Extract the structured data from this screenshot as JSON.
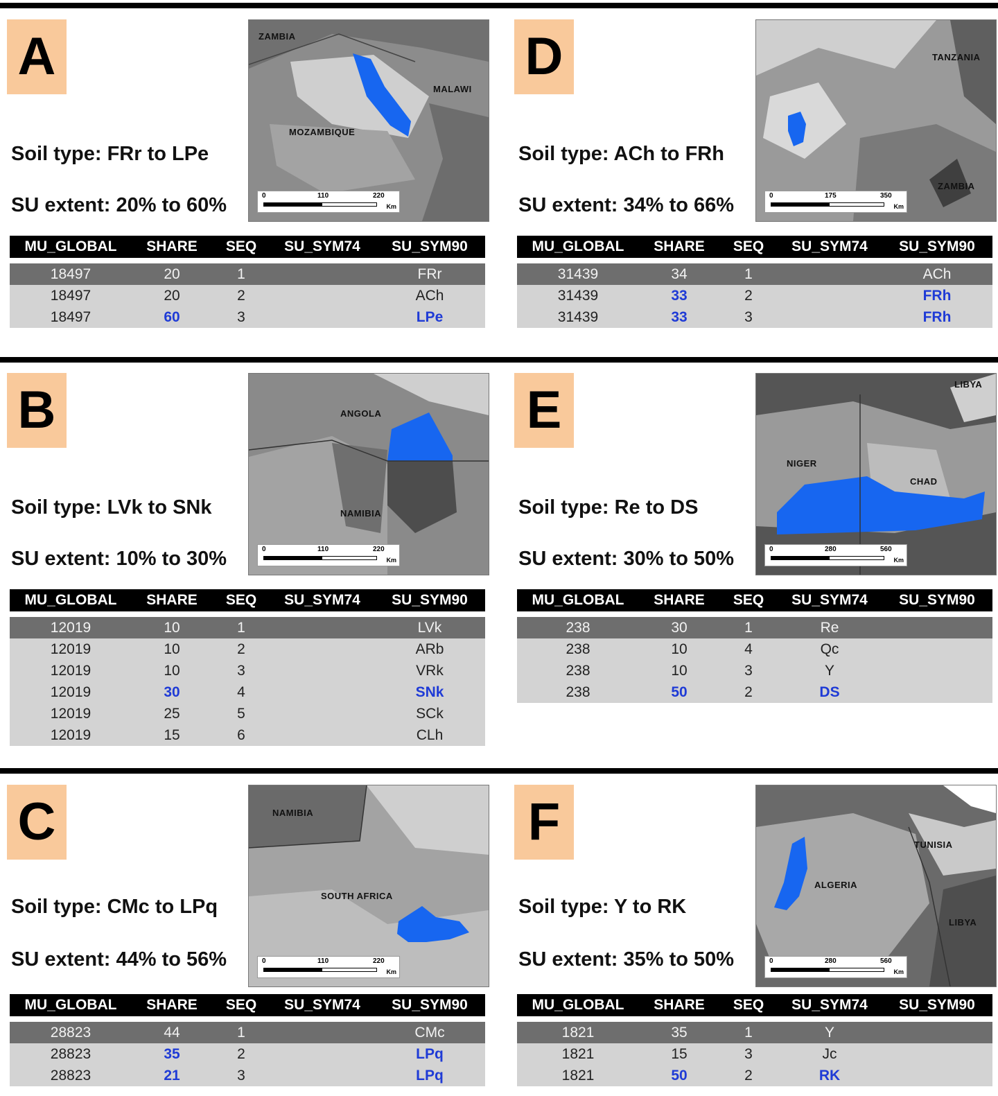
{
  "columns": [
    "MU_GLOBAL",
    "SHARE",
    "SEQ",
    "SU_SYM74",
    "SU_SYM90"
  ],
  "map_scale_unit": "Km",
  "colors": {
    "label_box": "#f9c99b",
    "highlight_text": "#1f3bd6",
    "map_region": "#1766f0",
    "first_row_bg": "#6e6e6e",
    "row_bg": "#d3d3d3"
  },
  "panels": [
    {
      "id": "A",
      "letter": "A",
      "soil_type": "Soil type: FRr to LPe",
      "su_extent": "SU extent: 20% to 60%",
      "map": {
        "labels": [
          "ZAMBIA",
          "MALAWI",
          "MOZAMBIQUE"
        ],
        "scale": [
          "0",
          "110",
          "220"
        ]
      },
      "rows": [
        {
          "mu_global": "18497",
          "share": "20",
          "seq": "1",
          "su_sym74": "",
          "su_sym90": "FRr",
          "highlight": false
        },
        {
          "mu_global": "18497",
          "share": "20",
          "seq": "2",
          "su_sym74": "",
          "su_sym90": "ACh",
          "highlight": false
        },
        {
          "mu_global": "18497",
          "share": "60",
          "seq": "3",
          "su_sym74": "",
          "su_sym90": "LPe",
          "highlight": true
        }
      ]
    },
    {
      "id": "D",
      "letter": "D",
      "soil_type": "Soil type: ACh to FRh",
      "su_extent": "SU extent: 34% to 66%",
      "map": {
        "labels": [
          "TANZANIA",
          "ZAMBIA"
        ],
        "scale": [
          "0",
          "175",
          "350"
        ]
      },
      "rows": [
        {
          "mu_global": "31439",
          "share": "34",
          "seq": "1",
          "su_sym74": "",
          "su_sym90": "ACh",
          "highlight": false
        },
        {
          "mu_global": "31439",
          "share": "33",
          "seq": "2",
          "su_sym74": "",
          "su_sym90": "FRh",
          "highlight": true
        },
        {
          "mu_global": "31439",
          "share": "33",
          "seq": "3",
          "su_sym74": "",
          "su_sym90": "FRh",
          "highlight": true
        }
      ]
    },
    {
      "id": "B",
      "letter": "B",
      "soil_type": "Soil type: LVk to SNk",
      "su_extent": "SU extent: 10% to 30%",
      "map": {
        "labels": [
          "ANGOLA",
          "NAMIBIA"
        ],
        "scale": [
          "0",
          "110",
          "220"
        ]
      },
      "rows": [
        {
          "mu_global": "12019",
          "share": "10",
          "seq": "1",
          "su_sym74": "",
          "su_sym90": "LVk",
          "highlight": false
        },
        {
          "mu_global": "12019",
          "share": "10",
          "seq": "2",
          "su_sym74": "",
          "su_sym90": "ARb",
          "highlight": false
        },
        {
          "mu_global": "12019",
          "share": "10",
          "seq": "3",
          "su_sym74": "",
          "su_sym90": "VRk",
          "highlight": false
        },
        {
          "mu_global": "12019",
          "share": "30",
          "seq": "4",
          "su_sym74": "",
          "su_sym90": "SNk",
          "highlight": true
        },
        {
          "mu_global": "12019",
          "share": "25",
          "seq": "5",
          "su_sym74": "",
          "su_sym90": "SCk",
          "highlight": false
        },
        {
          "mu_global": "12019",
          "share": "15",
          "seq": "6",
          "su_sym74": "",
          "su_sym90": "CLh",
          "highlight": false
        }
      ]
    },
    {
      "id": "E",
      "letter": "E",
      "soil_type": "Soil type: Re to DS",
      "su_extent": "SU extent: 30% to 50%",
      "map": {
        "labels": [
          "LIBYA",
          "NIGER",
          "CHAD"
        ],
        "scale": [
          "0",
          "280",
          "560"
        ]
      },
      "rows": [
        {
          "mu_global": "238",
          "share": "30",
          "seq": "1",
          "su_sym74": "Re",
          "su_sym90": "",
          "highlight": false
        },
        {
          "mu_global": "238",
          "share": "10",
          "seq": "4",
          "su_sym74": "Qc",
          "su_sym90": "",
          "highlight": false
        },
        {
          "mu_global": "238",
          "share": "10",
          "seq": "3",
          "su_sym74": "Y",
          "su_sym90": "",
          "highlight": false
        },
        {
          "mu_global": "238",
          "share": "50",
          "seq": "2",
          "su_sym74": "DS",
          "su_sym90": "",
          "highlight": true
        }
      ]
    },
    {
      "id": "C",
      "letter": "C",
      "soil_type": "Soil type: CMc to LPq",
      "su_extent": "SU extent: 44% to 56%",
      "map": {
        "labels": [
          "NAMIBIA",
          "SOUTH AFRICA"
        ],
        "scale": [
          "0",
          "110",
          "220"
        ]
      },
      "rows": [
        {
          "mu_global": "28823",
          "share": "44",
          "seq": "1",
          "su_sym74": "",
          "su_sym90": "CMc",
          "highlight": false
        },
        {
          "mu_global": "28823",
          "share": "35",
          "seq": "2",
          "su_sym74": "",
          "su_sym90": "LPq",
          "highlight": true
        },
        {
          "mu_global": "28823",
          "share": "21",
          "seq": "3",
          "su_sym74": "",
          "su_sym90": "LPq",
          "highlight": true
        }
      ]
    },
    {
      "id": "F",
      "letter": "F",
      "soil_type": "Soil type: Y to RK",
      "su_extent": "SU extent: 35% to 50%",
      "map": {
        "labels": [
          "TUNISIA",
          "ALGERIA",
          "LIBYA"
        ],
        "scale": [
          "0",
          "280",
          "560"
        ]
      },
      "rows": [
        {
          "mu_global": "1821",
          "share": "35",
          "seq": "1",
          "su_sym74": "Y",
          "su_sym90": "",
          "highlight": false
        },
        {
          "mu_global": "1821",
          "share": "15",
          "seq": "3",
          "su_sym74": "Jc",
          "su_sym90": "",
          "highlight": false
        },
        {
          "mu_global": "1821",
          "share": "50",
          "seq": "2",
          "su_sym74": "RK",
          "su_sym90": "",
          "highlight": true
        }
      ]
    }
  ]
}
